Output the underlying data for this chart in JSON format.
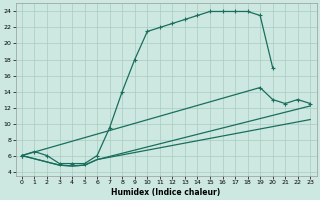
{
  "xlabel": "Humidex (Indice chaleur)",
  "xlim": [
    -0.5,
    23.5
  ],
  "ylim": [
    3.5,
    25.0
  ],
  "xticks": [
    0,
    1,
    2,
    3,
    4,
    5,
    6,
    7,
    8,
    9,
    10,
    11,
    12,
    13,
    14,
    15,
    16,
    17,
    18,
    19,
    20,
    21,
    22,
    23
  ],
  "yticks": [
    4,
    6,
    8,
    10,
    12,
    14,
    16,
    18,
    20,
    22,
    24
  ],
  "bg_color": "#cce8e0",
  "grid_color": "#aaccbf",
  "line_color": "#1a6e5e",
  "curve1_x": [
    0,
    1,
    2,
    3,
    4,
    5,
    6,
    7,
    8,
    9,
    10,
    11,
    12,
    13,
    14,
    15,
    16,
    17,
    18,
    19,
    20
  ],
  "curve1_y": [
    6,
    6.5,
    6.0,
    5.0,
    5.0,
    5.0,
    6.0,
    9.5,
    14.0,
    18.0,
    21.5,
    22.0,
    22.5,
    23.0,
    23.5,
    24.0,
    24.0,
    24.0,
    24.0,
    23.5,
    17.0
  ],
  "curve2_x": [
    0,
    19,
    20,
    21,
    22,
    23
  ],
  "curve2_y": [
    6,
    14.5,
    13.0,
    12.5,
    13.0,
    12.5
  ],
  "curve3_x": [
    0,
    3,
    4,
    5,
    6,
    23
  ],
  "curve3_y": [
    6,
    4.8,
    4.7,
    4.8,
    5.5,
    12.2
  ],
  "curve4_x": [
    0,
    3,
    4,
    5,
    6,
    23
  ],
  "curve4_y": [
    6,
    4.8,
    4.7,
    4.8,
    5.5,
    10.5
  ]
}
